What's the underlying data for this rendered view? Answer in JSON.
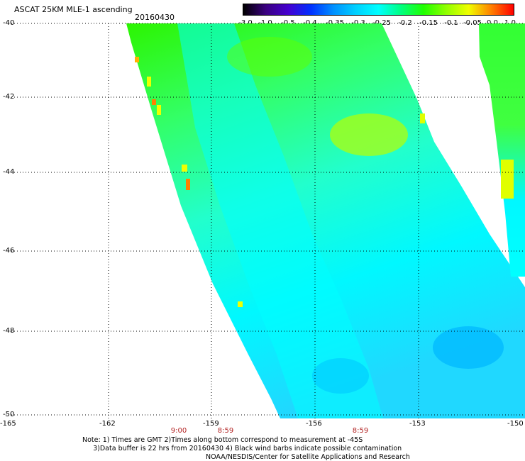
{
  "header": {
    "title": "ASCAT 25KM MLE-1 ascending",
    "date": "20160430"
  },
  "colorbar": {
    "labels": [
      "-3.0",
      "-1.0",
      "-0.5",
      "-0.4",
      "-0.35",
      "-0.3",
      "-0.25",
      "-0.2",
      "-0.15",
      "-0.1",
      "-0.05",
      "0.0",
      "1.0"
    ],
    "colors": [
      "#000000",
      "#3a0080",
      "#4400d0",
      "#0030ff",
      "#0090ff",
      "#00d0ff",
      "#00ffff",
      "#00ff80",
      "#20ff00",
      "#90ff00",
      "#f0ff00",
      "#ff8000",
      "#ff0000"
    ]
  },
  "map": {
    "lat_labels": [
      "-40",
      "-42",
      "-44",
      "-46",
      "-48",
      "-50"
    ],
    "lon_labels": [
      "-165",
      "-162",
      "-159",
      "-156",
      "-153",
      "-150"
    ],
    "time_labels": [
      "9:00",
      "8:59",
      "8:59"
    ]
  },
  "footer": {
    "note_line1": "Note: 1) Times are GMT 2)Times along bottom correspond to measurement at -45S",
    "note_line2": "3)Data buffer is 22 hrs from 20160430 4) Black wind barbs indicate possible contamination",
    "credit": "NOAA/NESDIS/Center for Satellite Applications and Research"
  }
}
